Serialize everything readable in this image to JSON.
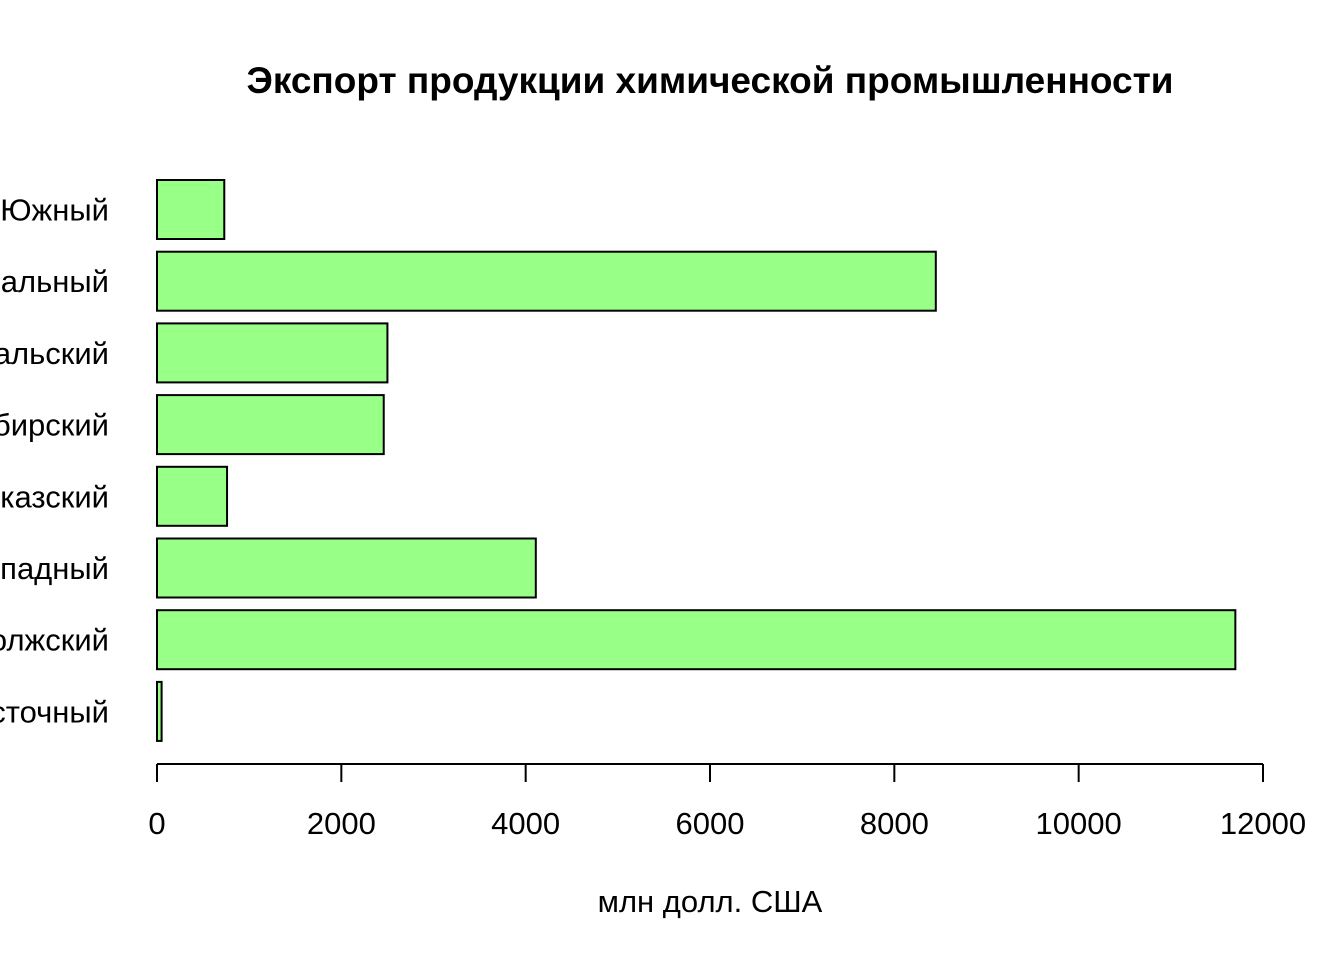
{
  "chart_data": {
    "type": "bar",
    "orientation": "horizontal",
    "title": "Экспорт продукции химической промышленности",
    "xlabel": "млн долл. США",
    "ylabel": "",
    "categories": [
      "Южный",
      "альный",
      "альский",
      "бирский",
      "казский",
      "падный",
      "олжский",
      "сточный"
    ],
    "values": [
      730,
      8450,
      2500,
      2460,
      760,
      4110,
      11700,
      50
    ],
    "xlim": [
      0,
      12000
    ],
    "xticks": [
      0,
      2000,
      4000,
      6000,
      8000,
      10000,
      12000
    ],
    "xtick_labels": [
      "0",
      "2000",
      "4000",
      "6000",
      "8000",
      "10000",
      "12000"
    ],
    "grid": false,
    "bar_color": "#98ff87",
    "border_color": "#000000"
  }
}
